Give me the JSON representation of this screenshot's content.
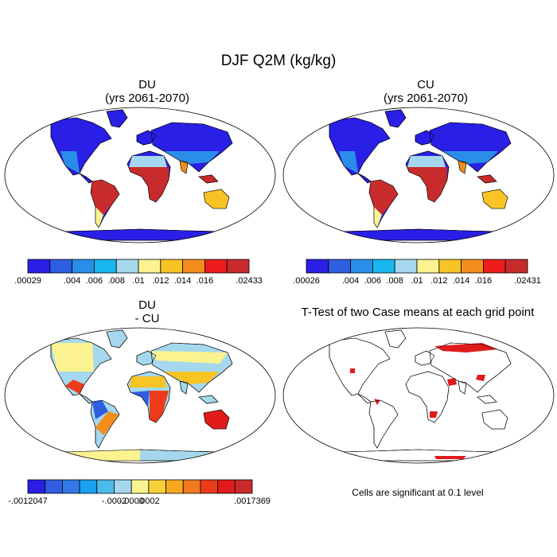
{
  "figure": {
    "title": "DJF Q2M (kg/kg)"
  },
  "panels": {
    "du": {
      "title": "DU",
      "subtitle": "(yrs 2061-2070)"
    },
    "cu": {
      "title": "CU",
      "subtitle": "(yrs 2061-2070)"
    },
    "diff": {
      "title": "DU",
      "subtitle": "- CU"
    },
    "ttest": {
      "title": "T-Test of two Case means at each grid point",
      "note": "Cells are significant at 0.1 level"
    }
  },
  "colorbars": {
    "du": {
      "colors": [
        "#2a1fe6",
        "#2f5ee0",
        "#2a8ee8",
        "#1ab7ee",
        "#a5d8ee",
        "#fbf38f",
        "#f8c325",
        "#f38d1e",
        "#ed1c1c",
        "#c82b2b"
      ],
      "labels": [
        ".00029",
        ".004",
        ".006",
        ".008",
        ".01",
        ".012",
        ".014",
        ".016",
        ".02433"
      ]
    },
    "cu": {
      "colors": [
        "#2a1fe6",
        "#2f5ee0",
        "#2a8ee8",
        "#1ab7ee",
        "#a5d8ee",
        "#fbf38f",
        "#f8c325",
        "#f38d1e",
        "#ed1c1c",
        "#c82b2b"
      ],
      "labels": [
        ".00026",
        ".004",
        ".006",
        ".008",
        ".01",
        ".012",
        ".014",
        ".016",
        ".02431"
      ]
    },
    "diff": {
      "colors": [
        "#2a1fe6",
        "#2f5ee0",
        "#3378e6",
        "#1aa1ef",
        "#4bbbec",
        "#a5d8ee",
        "#fbf38f",
        "#f8d13a",
        "#f8a820",
        "#f37a1c",
        "#ed3a1a",
        "#e11b1b",
        "#c82b2b"
      ],
      "labels": [
        "-.0012047",
        "-.0002",
        "-.0000",
        ".0002",
        ".0017369"
      ]
    }
  }
}
